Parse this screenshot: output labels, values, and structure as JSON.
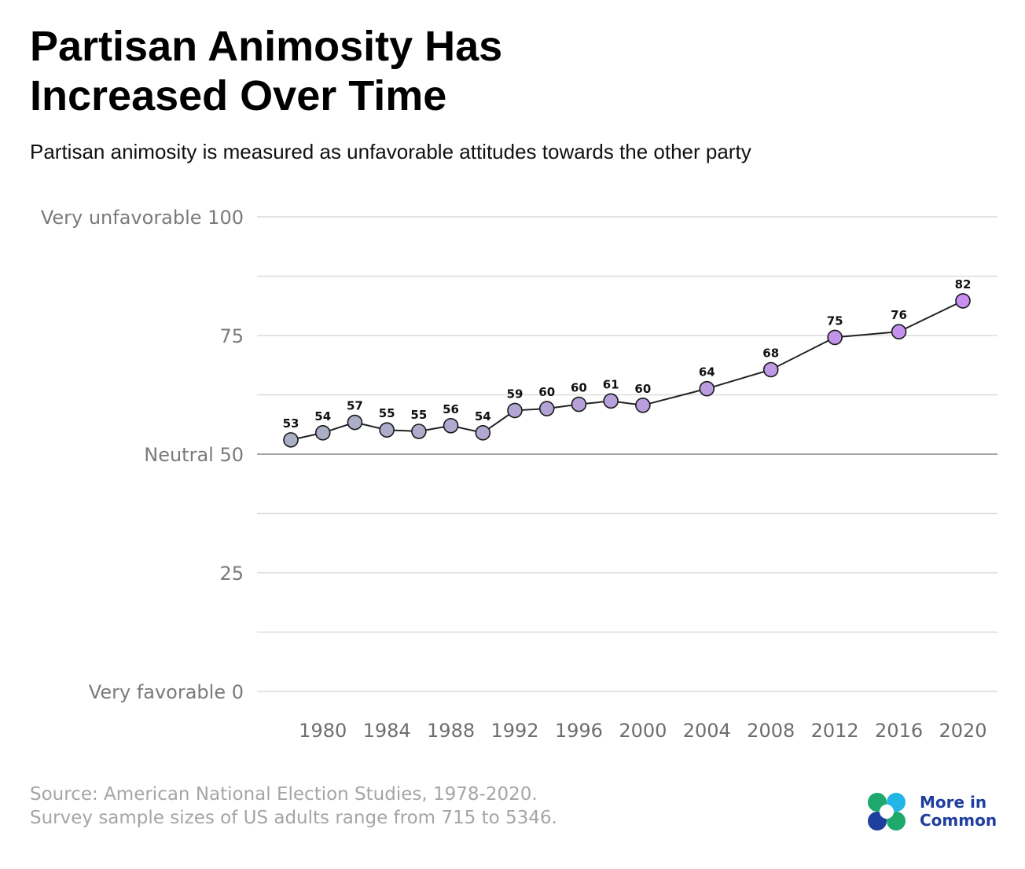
{
  "title": "Partisan Animosity Has Increased Over Time",
  "subtitle": "Partisan animosity is measured as unfavorable attitudes towards the other party",
  "source_line1": "Source: American National Election Studies, 1978-2020.",
  "source_line2": "Survey sample sizes of US adults range from 715 to 5346.",
  "logo_text_line1": "More in",
  "logo_text_line2": "Common",
  "logo_icon": "four-petal-logo-icon",
  "colors": {
    "line": "#222222",
    "grid": "#dcdcdc",
    "neutral_line": "#9a9a9a",
    "marker_start": "#a9b1c4",
    "marker_end": "#c78ff2",
    "logo_green": "#1ea86b",
    "logo_blue": "#1f3f9e",
    "logo_cyan": "#21b6e6"
  },
  "chart_data": {
    "type": "line",
    "title": "Partisan Animosity Has Increased Over Time",
    "subtitle": "Partisan animosity is measured as unfavorable attitudes towards the other party",
    "xlabel": "",
    "ylabel": "",
    "ylim": [
      0,
      100
    ],
    "xlim": [
      1976,
      2020
    ],
    "yticks": [
      {
        "value": 100,
        "label": "Very unfavorable 100"
      },
      {
        "value": 75,
        "label": "75"
      },
      {
        "value": 50,
        "label": "Neutral 50"
      },
      {
        "value": 25,
        "label": "25"
      },
      {
        "value": 0,
        "label": "Very favorable 0"
      }
    ],
    "gridlines": [
      100,
      87.5,
      75,
      62.5,
      37.5,
      25,
      12.5,
      0
    ],
    "reference_line": 50,
    "xticks": [
      1980,
      1984,
      1988,
      1992,
      1996,
      2000,
      2004,
      2008,
      2012,
      2016,
      2020
    ],
    "series": [
      {
        "x": [
          1978,
          1980,
          1982,
          1984,
          1986,
          1988,
          1990,
          1992,
          1994,
          1996,
          1998,
          2000,
          2004,
          2008,
          2012,
          2016,
          2020
        ],
        "values": [
          53,
          54.5,
          56.7,
          55.1,
          54.8,
          56,
          54.5,
          59.2,
          59.6,
          60.5,
          61.2,
          60.3,
          63.8,
          67.8,
          74.6,
          75.8,
          82.3
        ],
        "labels": [
          "53",
          "54",
          "57",
          "55",
          "55",
          "56",
          "54",
          "59",
          "60",
          "60",
          "61",
          "60",
          "64",
          "68",
          "75",
          "76",
          "82"
        ]
      }
    ]
  }
}
